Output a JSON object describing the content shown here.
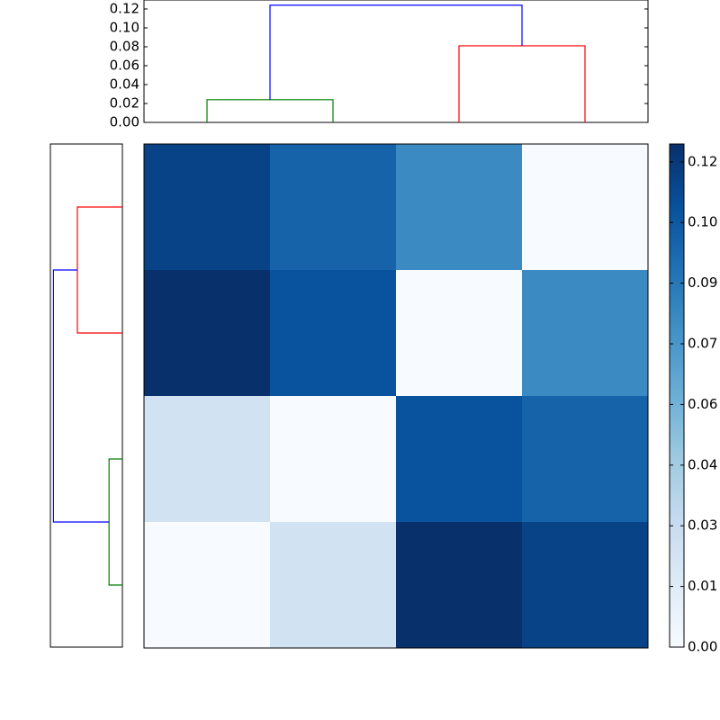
{
  "chart_data": [
    {
      "type": "dendrogram",
      "orientation": "top",
      "heights": [
        0.024,
        0.081,
        0.124
      ],
      "colors": [
        "#008000",
        "#ff0000",
        "#0000ff"
      ],
      "ylim": [
        0,
        0.1295
      ],
      "yticks": [
        {
          "value": 0,
          "label": "0.00"
        },
        {
          "value": 0.02,
          "label": "0.02"
        },
        {
          "value": 0.04,
          "label": "0.04"
        },
        {
          "value": 0.06,
          "label": "0.06"
        },
        {
          "value": 0.08,
          "label": "0.08"
        },
        {
          "value": 0.1,
          "label": "0.10"
        },
        {
          "value": 0.12,
          "label": "0.12"
        }
      ]
    },
    {
      "type": "dendrogram",
      "orientation": "left",
      "heights": [
        0.024,
        0.081,
        0.124
      ],
      "colors": [
        "#008000",
        "#ff0000",
        "#0000ff"
      ],
      "xlim": [
        0,
        0.1295
      ]
    },
    {
      "type": "heatmap",
      "cmap": "Blues",
      "values": [
        [
          0.115,
          0.1,
          0.081,
          0
        ],
        [
          0.124,
          0.108,
          0,
          0.081
        ],
        [
          0.024,
          0,
          0.108,
          0.1
        ],
        [
          0,
          0.024,
          0.124,
          0.115
        ]
      ],
      "clim": [
        0,
        0.124
      ],
      "colorbar_ticks": [
        {
          "value": 0,
          "label": "0.00"
        },
        {
          "value": 0.01495,
          "label": "0.01"
        },
        {
          "value": 0.0299,
          "label": "0.03"
        },
        {
          "value": 0.04485,
          "label": "0.04"
        },
        {
          "value": 0.0598,
          "label": "0.06"
        },
        {
          "value": 0.07475,
          "label": "0.07"
        },
        {
          "value": 0.0897,
          "label": "0.09"
        },
        {
          "value": 0.10465,
          "label": "0.10"
        },
        {
          "value": 0.1196,
          "label": "0.12"
        }
      ]
    }
  ]
}
